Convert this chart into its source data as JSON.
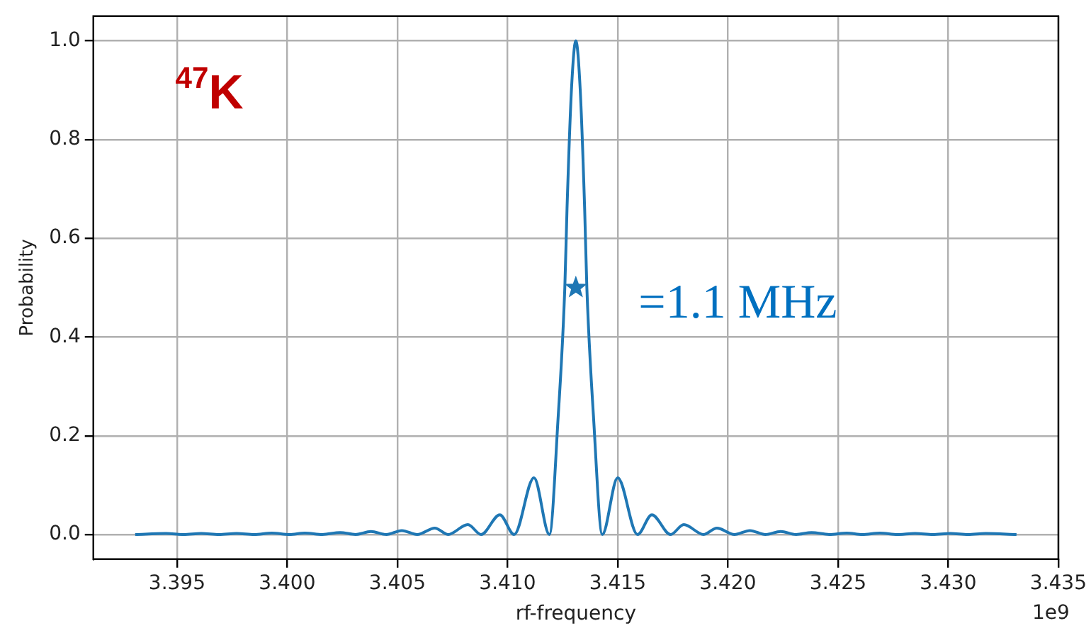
{
  "chart_data": {
    "type": "line",
    "xlabel": "rf-frequency",
    "ylabel": "Probability",
    "annotations": [
      "$^{47}$K",
      "=1.1 MHz",
      "1e9"
    ],
    "series": [
      {
        "color": "#1f77b4",
        "marker": "none",
        "x": [
          3.3931,
          3.3945,
          3.3953,
          3.3961,
          3.3969,
          3.3977,
          3.3985,
          3.3993,
          3.4001,
          3.4008,
          3.4016,
          3.4024,
          3.4031,
          3.4038,
          3.4045,
          3.4052,
          3.4059,
          3.4067,
          3.4073,
          3.4082,
          3.4088,
          3.40965,
          3.4103,
          3.4112,
          3.4119,
          3.4123,
          3.4126,
          3.4127,
          3.4129,
          3.4131,
          3.4133,
          3.4135,
          3.4136,
          3.4139,
          3.4143,
          3.415,
          3.4159,
          3.41655,
          3.4174,
          3.418,
          3.4189,
          3.4195,
          3.4203,
          3.421,
          3.4217,
          3.4224,
          3.4231,
          3.4238,
          3.4246,
          3.4254,
          3.4261,
          3.4269,
          3.4277,
          3.4285,
          3.4293,
          3.4301,
          3.4309,
          3.4317,
          3.4331
        ],
        "values": [
          0,
          0.002,
          0,
          0.002,
          0,
          0.002,
          0,
          0.003,
          0,
          0.003,
          0,
          0.004,
          0,
          0.006,
          0,
          0.008,
          0,
          0.013,
          0,
          0.02,
          0,
          0.04,
          0,
          0.115,
          0,
          0.24,
          0.5,
          0.66,
          0.9,
          1.0,
          0.9,
          0.66,
          0.5,
          0.24,
          0,
          0.115,
          0,
          0.04,
          0,
          0.02,
          0,
          0.013,
          0,
          0.008,
          0,
          0.006,
          0,
          0.004,
          0,
          0.003,
          0,
          0.003,
          0,
          0.002,
          0,
          0.002,
          0,
          0.002,
          0
        ]
      },
      {
        "type": "scatter",
        "color": "#1f77b4",
        "marker": "star",
        "x": [
          3.4131
        ],
        "values": [
          0.5
        ]
      }
    ],
    "xlim": [
      3.3912,
      3.435
    ],
    "ylim": [
      -0.05,
      1.05
    ],
    "xticks": [
      3.395,
      {
        "value": 3.4,
        "label": "3.400"
      },
      3.405,
      {
        "value": 3.41,
        "label": "3.410"
      },
      3.415,
      {
        "value": 3.42,
        "label": "3.420"
      },
      3.425,
      {
        "value": 3.43,
        "label": "3.430"
      },
      3.435
    ],
    "yticks": [
      {
        "value": 0,
        "label": "0.0"
      },
      0.2,
      0.4,
      0.6,
      0.8,
      {
        "value": 1,
        "label": "1.0"
      }
    ],
    "grid": true,
    "legend": false
  }
}
